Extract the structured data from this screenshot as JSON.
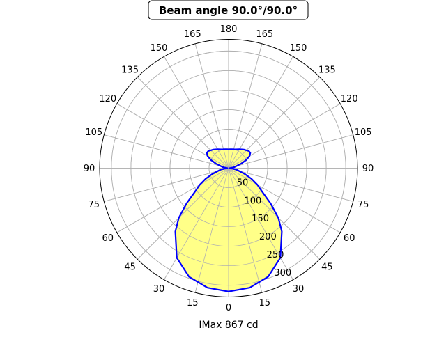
{
  "chart_data": {
    "type": "polar",
    "title": "Beam angle 90.0°/90.0°",
    "xlabel": "IMax 867 cd",
    "angle_unit": "deg",
    "zero_location": "bottom",
    "angle_ticks_left": [
      "0",
      "15",
      "30",
      "45",
      "60",
      "75",
      "90",
      "105",
      "120",
      "135",
      "150",
      "165",
      "180"
    ],
    "angle_ticks_right": [
      "15",
      "30",
      "45",
      "60",
      "75",
      "90",
      "105",
      "120",
      "135",
      "150",
      "165"
    ],
    "radial_ticks": [
      50,
      100,
      150,
      200,
      250,
      300
    ],
    "rlim": [
      0,
      330
    ],
    "grid": true,
    "line_color": "#0000ff",
    "fill_color": "#ffff88",
    "series": [
      {
        "angles": [
          0,
          10,
          20,
          30,
          40,
          45,
          50,
          55,
          60,
          65,
          70,
          80,
          90,
          100,
          110,
          115,
          120,
          125,
          130,
          140,
          150,
          160,
          170,
          180
        ],
        "values": [
          316,
          311,
          296,
          265,
          212,
          180,
          140,
          105,
          85,
          65,
          45,
          20,
          3,
          15,
          35,
          50,
          62,
          68,
          68,
          62,
          56,
          51,
          49,
          48
        ]
      }
    ]
  }
}
